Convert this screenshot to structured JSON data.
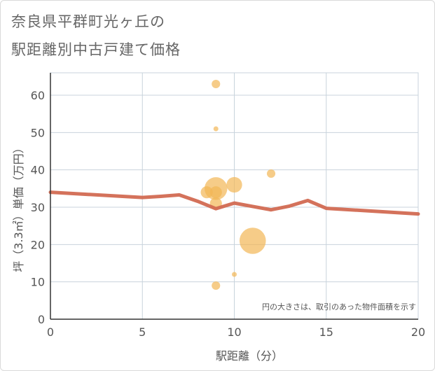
{
  "title_line1": "奈良県平群町光ヶ丘の",
  "title_line2": "駅距離別中古戸建て価格",
  "chart_data": {
    "type": "scatter",
    "title": "奈良県平群町光ヶ丘の駅距離別中古戸建て価格",
    "xlabel": "駅距離（分）",
    "ylabel": "坪（3.3㎡）単価（万円）",
    "xlim": [
      0,
      20
    ],
    "ylim": [
      0,
      66
    ],
    "xticks": [
      0,
      5,
      10,
      15,
      20
    ],
    "yticks": [
      0,
      10,
      20,
      30,
      40,
      50,
      60
    ],
    "grid": true,
    "note": "円の大きさは、取引のあった物件面積を示す",
    "bubble_color": "#F2B755",
    "line_color": "#D26A52",
    "points": [
      {
        "x": 9,
        "y": 63,
        "size": 2
      },
      {
        "x": 9,
        "y": 51,
        "size": 1
      },
      {
        "x": 9,
        "y": 35,
        "size": 6
      },
      {
        "x": 9,
        "y": 34,
        "size": 3
      },
      {
        "x": 9,
        "y": 31,
        "size": 3
      },
      {
        "x": 8.5,
        "y": 34,
        "size": 3
      },
      {
        "x": 10,
        "y": 36,
        "size": 4
      },
      {
        "x": 12,
        "y": 39,
        "size": 2
      },
      {
        "x": 11,
        "y": 21,
        "size": 7
      },
      {
        "x": 10,
        "y": 12,
        "size": 1
      },
      {
        "x": 9,
        "y": 9,
        "size": 2
      }
    ],
    "trend": {
      "x": [
        0,
        5,
        6,
        7,
        8,
        9,
        10,
        11,
        12,
        13,
        14,
        15,
        20
      ],
      "y": [
        34,
        32.6,
        32.9,
        33.3,
        31.6,
        29.6,
        31.1,
        30.2,
        29.3,
        30.3,
        31.8,
        29.7,
        28.2
      ]
    }
  }
}
